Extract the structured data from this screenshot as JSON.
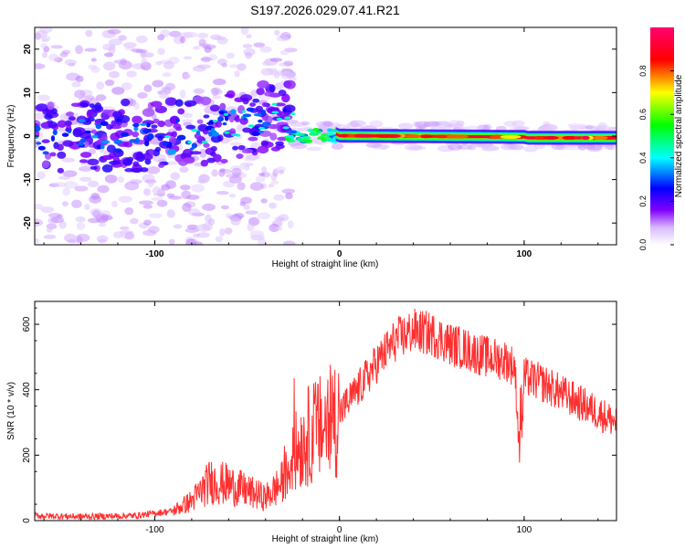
{
  "figure_title": "S197.2026.029.07.41.R21",
  "chart_data": [
    {
      "type": "heatmap",
      "title": "S197.2026.029.07.41.R21",
      "xlabel": "Height of straight line (km)",
      "ylabel": "Frequency (Hz)",
      "xlim": [
        -165,
        150
      ],
      "ylim": [
        -25,
        25
      ],
      "xticks": [
        -100,
        0,
        100
      ],
      "xtick_labels": [
        "-100",
        "0",
        "100"
      ],
      "yticks": [
        -20,
        -10,
        0,
        10,
        20
      ],
      "ytick_labels": [
        "-20",
        "-10",
        "0",
        "10",
        "20"
      ],
      "colorbar": {
        "label": "Normalized spectral amplitude",
        "range": [
          0,
          1
        ],
        "ticks": [
          0.0,
          0.2,
          0.4,
          0.6,
          0.8
        ],
        "tick_labels": [
          "0.0",
          "0.2",
          "0.4",
          "0.6",
          "0.8"
        ],
        "colormap": [
          "#ffffff",
          "#8000ff",
          "#0000ff",
          "#00ffff",
          "#00ff00",
          "#ffff00",
          "#ff0000",
          "#ff0080"
        ]
      },
      "description_points": [
        {
          "x": -160,
          "y": 1,
          "amp": 0.15
        },
        {
          "x": -120,
          "y": 0,
          "amp": 0.2
        },
        {
          "x": -90,
          "y": -3,
          "amp": 0.25
        },
        {
          "x": -75,
          "y": 3,
          "amp": 0.3
        },
        {
          "x": -40,
          "y": 6,
          "amp": 0.35
        },
        {
          "x": -20,
          "y": 0.5,
          "amp": 0.5
        },
        {
          "x": 0,
          "y": 0,
          "amp": 0.95
        },
        {
          "x": 50,
          "y": 0,
          "amp": 0.9
        },
        {
          "x": 100,
          "y": 0,
          "amp": 0.85
        },
        {
          "x": 150,
          "y": -0.5,
          "amp": 0.9
        }
      ]
    },
    {
      "type": "line",
      "title": "",
      "xlabel": "Height of straight line (km)",
      "ylabel": "SNR (10 * v/v)",
      "xlim": [
        -165,
        150
      ],
      "ylim": [
        0,
        670
      ],
      "xticks": [
        -100,
        0,
        100
      ],
      "xtick_labels": [
        "-100",
        "0",
        "100"
      ],
      "yticks": [
        0,
        200,
        400,
        600
      ],
      "ytick_labels": [
        "0",
        "200",
        "400",
        "600"
      ],
      "series": [
        {
          "name": "SNR",
          "color": "#ff3030",
          "x": [
            -165,
            -140,
            -110,
            -90,
            -80,
            -70,
            -60,
            -50,
            -40,
            -30,
            -25,
            -20,
            -15,
            -10,
            -5,
            0,
            10,
            20,
            30,
            40,
            50,
            60,
            70,
            80,
            90,
            95,
            98,
            100,
            110,
            120,
            130,
            140,
            150
          ],
          "y": [
            15,
            12,
            15,
            30,
            60,
            120,
            110,
            90,
            70,
            120,
            200,
            240,
            270,
            280,
            300,
            330,
            400,
            480,
            550,
            580,
            570,
            540,
            520,
            500,
            490,
            470,
            150,
            440,
            420,
            390,
            360,
            330,
            300
          ]
        }
      ]
    }
  ]
}
